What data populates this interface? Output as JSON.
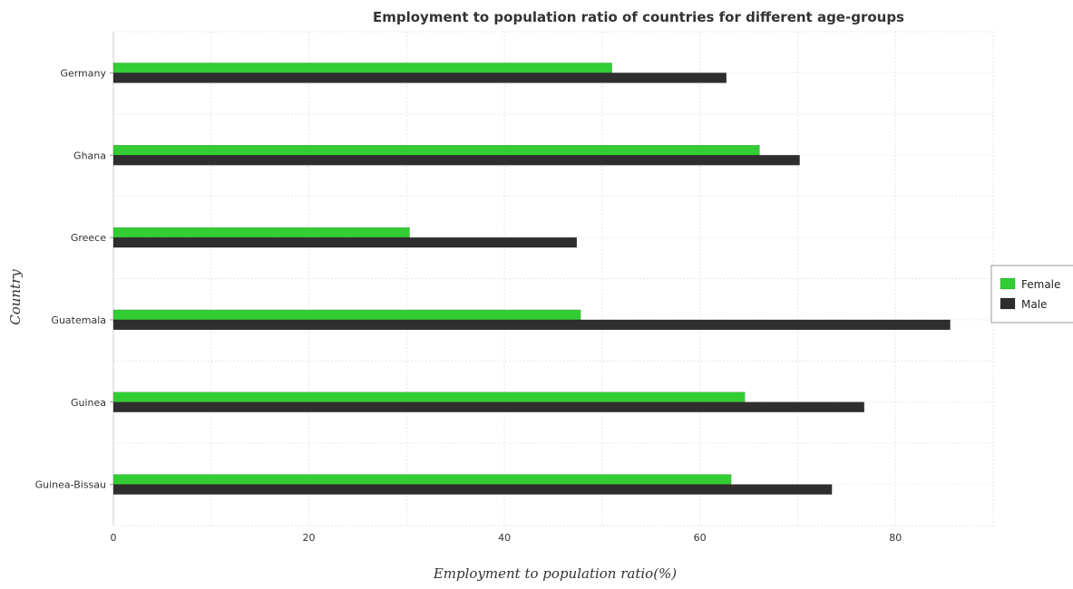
{
  "chart_data": {
    "type": "bar",
    "orientation": "horizontal",
    "title": "Employment to population ratio of countries for different age-groups",
    "xlabel": "Employment to population ratio(%)",
    "ylabel": "Country",
    "categories": [
      "Germany",
      "Ghana",
      "Greece",
      "Guatemala",
      "Guinea",
      "Guinea-Bissau"
    ],
    "series": [
      {
        "name": "Female",
        "color": "#32cd32",
        "values": [
          51.0,
          66.1,
          30.3,
          47.8,
          64.6,
          63.2
        ]
      },
      {
        "name": "Male",
        "color": "#2e2e2e",
        "values": [
          62.7,
          70.2,
          47.4,
          85.6,
          76.8,
          73.5
        ]
      }
    ],
    "xlim": [
      0,
      90
    ],
    "xticks": [
      0,
      20,
      40,
      60,
      80
    ],
    "grid": true,
    "legend_position": "right"
  }
}
